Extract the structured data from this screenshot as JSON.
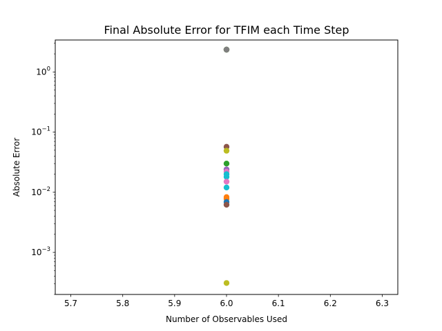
{
  "chart_data": {
    "type": "scatter",
    "title": "Final Absolute Error for TFIM each Time Step",
    "xlabel": "Number of Observables Used",
    "ylabel": "Absolute Error",
    "xlim": [
      5.67,
      6.33
    ],
    "ylim": [
      0.0002,
      3.4
    ],
    "yscale": "log",
    "grid": false,
    "x_ticks": [
      5.7,
      5.8,
      5.9,
      6.0,
      6.1,
      6.2,
      6.3
    ],
    "x_tick_labels": [
      "5.7",
      "5.8",
      "5.9",
      "6.0",
      "6.1",
      "6.2",
      "6.3"
    ],
    "y_major_ticks": [
      0.001,
      0.01,
      0.1,
      1
    ],
    "y_tick_labels": [
      {
        "base": "10",
        "exp": "−3"
      },
      {
        "base": "10",
        "exp": "−2"
      },
      {
        "base": "10",
        "exp": "−1"
      },
      {
        "base": "10",
        "exp": "0"
      }
    ],
    "points": [
      {
        "x": 6,
        "y": 2.35,
        "color": "#1f77b4"
      },
      {
        "x": 6,
        "y": 2.35,
        "color": "#ff7f0e"
      },
      {
        "x": 6,
        "y": 2.35,
        "color": "#2ca02c"
      },
      {
        "x": 6,
        "y": 2.35,
        "color": "#7f7f7f"
      },
      {
        "x": 6,
        "y": 0.057,
        "color": "#8c564b"
      },
      {
        "x": 6,
        "y": 0.049,
        "color": "#bcbd22"
      },
      {
        "x": 6,
        "y": 0.03,
        "color": "#2ca02c"
      },
      {
        "x": 6,
        "y": 0.024,
        "color": "#9467bd"
      },
      {
        "x": 6,
        "y": 0.022,
        "color": "#e377c2"
      },
      {
        "x": 6,
        "y": 0.02,
        "color": "#17becf"
      },
      {
        "x": 6,
        "y": 0.018,
        "color": "#17becf"
      },
      {
        "x": 6,
        "y": 0.015,
        "color": "#e377c2"
      },
      {
        "x": 6,
        "y": 0.012,
        "color": "#17becf"
      },
      {
        "x": 6,
        "y": 0.0083,
        "color": "#ff7f0e"
      },
      {
        "x": 6,
        "y": 0.0078,
        "color": "#ff7f0e"
      },
      {
        "x": 6,
        "y": 0.0069,
        "color": "#1f77b4"
      },
      {
        "x": 6,
        "y": 0.0062,
        "color": "#8c564b"
      },
      {
        "x": 6,
        "y": 0.00031,
        "color": "#bcbd22"
      }
    ]
  }
}
